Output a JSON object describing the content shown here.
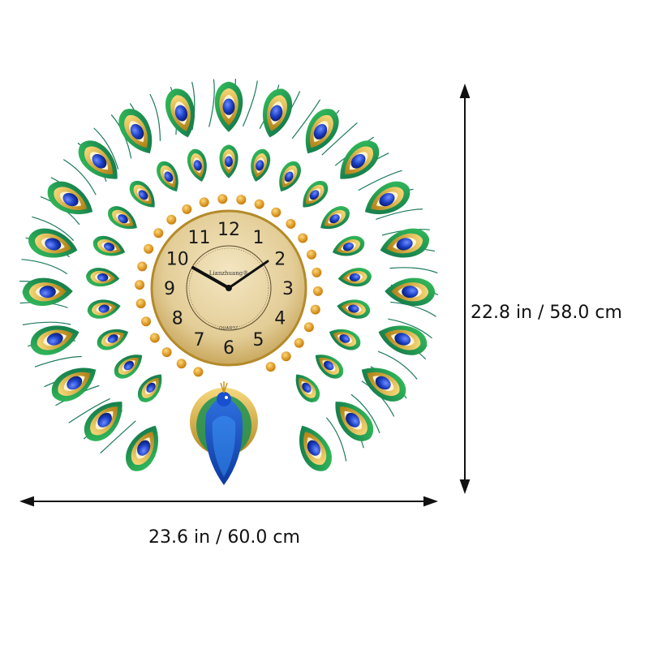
{
  "product": {
    "type": "peacock wall clock",
    "brand_text": "Lianzhuang®",
    "movement_text": "QUARTZ",
    "dial_numerals": [
      "12",
      "1",
      "2",
      "3",
      "4",
      "5",
      "6",
      "7",
      "8",
      "9",
      "10",
      "11"
    ],
    "time_shown": "10:10"
  },
  "dimensions": {
    "height_label": "22.8 in / 58.0 cm",
    "width_label": "23.6 in / 60.0 cm"
  },
  "colors": {
    "gold": "#c9961f",
    "gold_light": "#f0cf6a",
    "green": "#1f9a3c",
    "teal": "#127a6a",
    "sapphire": "#1a3fc4",
    "dial": "#e6d3a4",
    "amber": "#e09a12",
    "ink": "#111111"
  }
}
